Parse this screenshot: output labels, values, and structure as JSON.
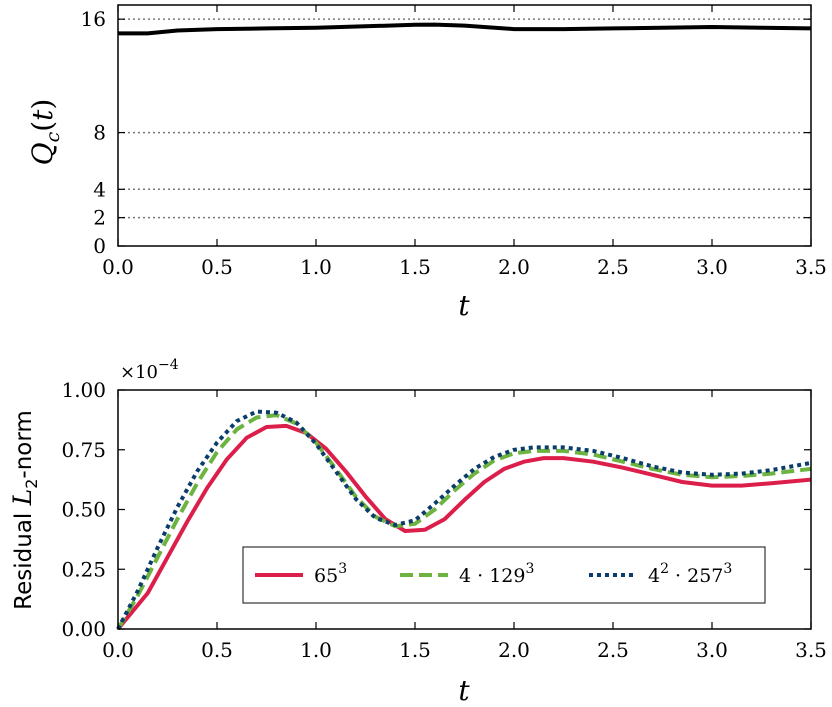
{
  "chart_data": [
    {
      "type": "line",
      "xlabel": "t",
      "ylabel": "Q_c(t)",
      "xlim": [
        0.0,
        3.5
      ],
      "ylim": [
        0,
        17
      ],
      "xticks": [
        "0.0",
        "0.5",
        "1.0",
        "1.5",
        "2.0",
        "2.5",
        "3.0",
        "3.5"
      ],
      "yticks": [
        "0",
        "2",
        "4",
        "8",
        "16"
      ],
      "reference_lines": [
        2,
        4,
        8,
        16
      ],
      "grid": false,
      "series": [
        {
          "color": "#000000",
          "x": [
            0.0,
            0.15,
            0.3,
            0.5,
            0.75,
            1.0,
            1.25,
            1.5,
            1.6,
            1.75,
            2.0,
            2.25,
            2.5,
            2.75,
            3.0,
            3.25,
            3.5
          ],
          "y": [
            15.0,
            15.0,
            15.2,
            15.3,
            15.35,
            15.4,
            15.5,
            15.6,
            15.62,
            15.55,
            15.3,
            15.3,
            15.35,
            15.4,
            15.45,
            15.4,
            15.35
          ]
        }
      ]
    },
    {
      "type": "line",
      "xlabel": "t",
      "ylabel_prefix": "Residual ",
      "ylabel_math": "L",
      "ylabel_sub": "2",
      "ylabel_suffix": "-norm",
      "scale_label": "×10",
      "scale_exp": "−4",
      "xlim": [
        0.0,
        3.5
      ],
      "ylim": [
        0.0,
        1.0
      ],
      "xticks": [
        "0.0",
        "0.5",
        "1.0",
        "1.5",
        "2.0",
        "2.5",
        "3.0",
        "3.5"
      ],
      "yticks": [
        "0.00",
        "0.25",
        "0.50",
        "0.75",
        "1.00"
      ],
      "grid": false,
      "legend_placement": "lower-center",
      "series": [
        {
          "name_base": "65",
          "name_exp": "3",
          "color": "#dc1e4a",
          "style": "solid",
          "x": [
            0.0,
            0.15,
            0.25,
            0.35,
            0.45,
            0.55,
            0.65,
            0.75,
            0.85,
            0.95,
            1.05,
            1.15,
            1.25,
            1.35,
            1.45,
            1.55,
            1.65,
            1.75,
            1.85,
            1.95,
            2.05,
            2.15,
            2.25,
            2.4,
            2.55,
            2.7,
            2.85,
            3.0,
            3.15,
            3.3,
            3.5
          ],
          "y": [
            0.0,
            0.15,
            0.3,
            0.45,
            0.59,
            0.71,
            0.8,
            0.845,
            0.85,
            0.82,
            0.755,
            0.66,
            0.555,
            0.46,
            0.41,
            0.415,
            0.46,
            0.54,
            0.615,
            0.67,
            0.7,
            0.715,
            0.715,
            0.7,
            0.675,
            0.645,
            0.615,
            0.6,
            0.6,
            0.61,
            0.625
          ]
        },
        {
          "name_base": "4 · 129",
          "name_exp": "3",
          "color": "#6cb33f",
          "style": "dashed",
          "x": [
            0.0,
            0.1,
            0.2,
            0.3,
            0.4,
            0.5,
            0.6,
            0.7,
            0.8,
            0.9,
            1.0,
            1.1,
            1.2,
            1.3,
            1.4,
            1.5,
            1.6,
            1.7,
            1.8,
            1.9,
            2.0,
            2.1,
            2.25,
            2.4,
            2.55,
            2.7,
            2.85,
            3.0,
            3.15,
            3.3,
            3.5
          ],
          "y": [
            0.0,
            0.14,
            0.3,
            0.46,
            0.61,
            0.74,
            0.835,
            0.885,
            0.895,
            0.86,
            0.78,
            0.67,
            0.555,
            0.47,
            0.43,
            0.44,
            0.5,
            0.58,
            0.65,
            0.705,
            0.735,
            0.745,
            0.745,
            0.73,
            0.7,
            0.67,
            0.645,
            0.635,
            0.64,
            0.65,
            0.67
          ]
        },
        {
          "name_base_a": "4",
          "name_exp_a": "2",
          "name_base_b": " · 257",
          "name_exp_b": "3",
          "color": "#0b3d6b",
          "style": "dotted",
          "x": [
            0.0,
            0.1,
            0.2,
            0.3,
            0.4,
            0.5,
            0.6,
            0.7,
            0.8,
            0.9,
            1.0,
            1.1,
            1.2,
            1.3,
            1.4,
            1.5,
            1.6,
            1.7,
            1.8,
            1.9,
            2.0,
            2.1,
            2.25,
            2.4,
            2.55,
            2.7,
            2.85,
            3.0,
            3.15,
            3.3,
            3.5
          ],
          "y": [
            0.0,
            0.16,
            0.34,
            0.51,
            0.66,
            0.78,
            0.87,
            0.91,
            0.905,
            0.865,
            0.775,
            0.66,
            0.545,
            0.465,
            0.435,
            0.455,
            0.525,
            0.6,
            0.67,
            0.72,
            0.75,
            0.76,
            0.76,
            0.745,
            0.715,
            0.68,
            0.655,
            0.645,
            0.65,
            0.665,
            0.695
          ]
        }
      ]
    }
  ]
}
